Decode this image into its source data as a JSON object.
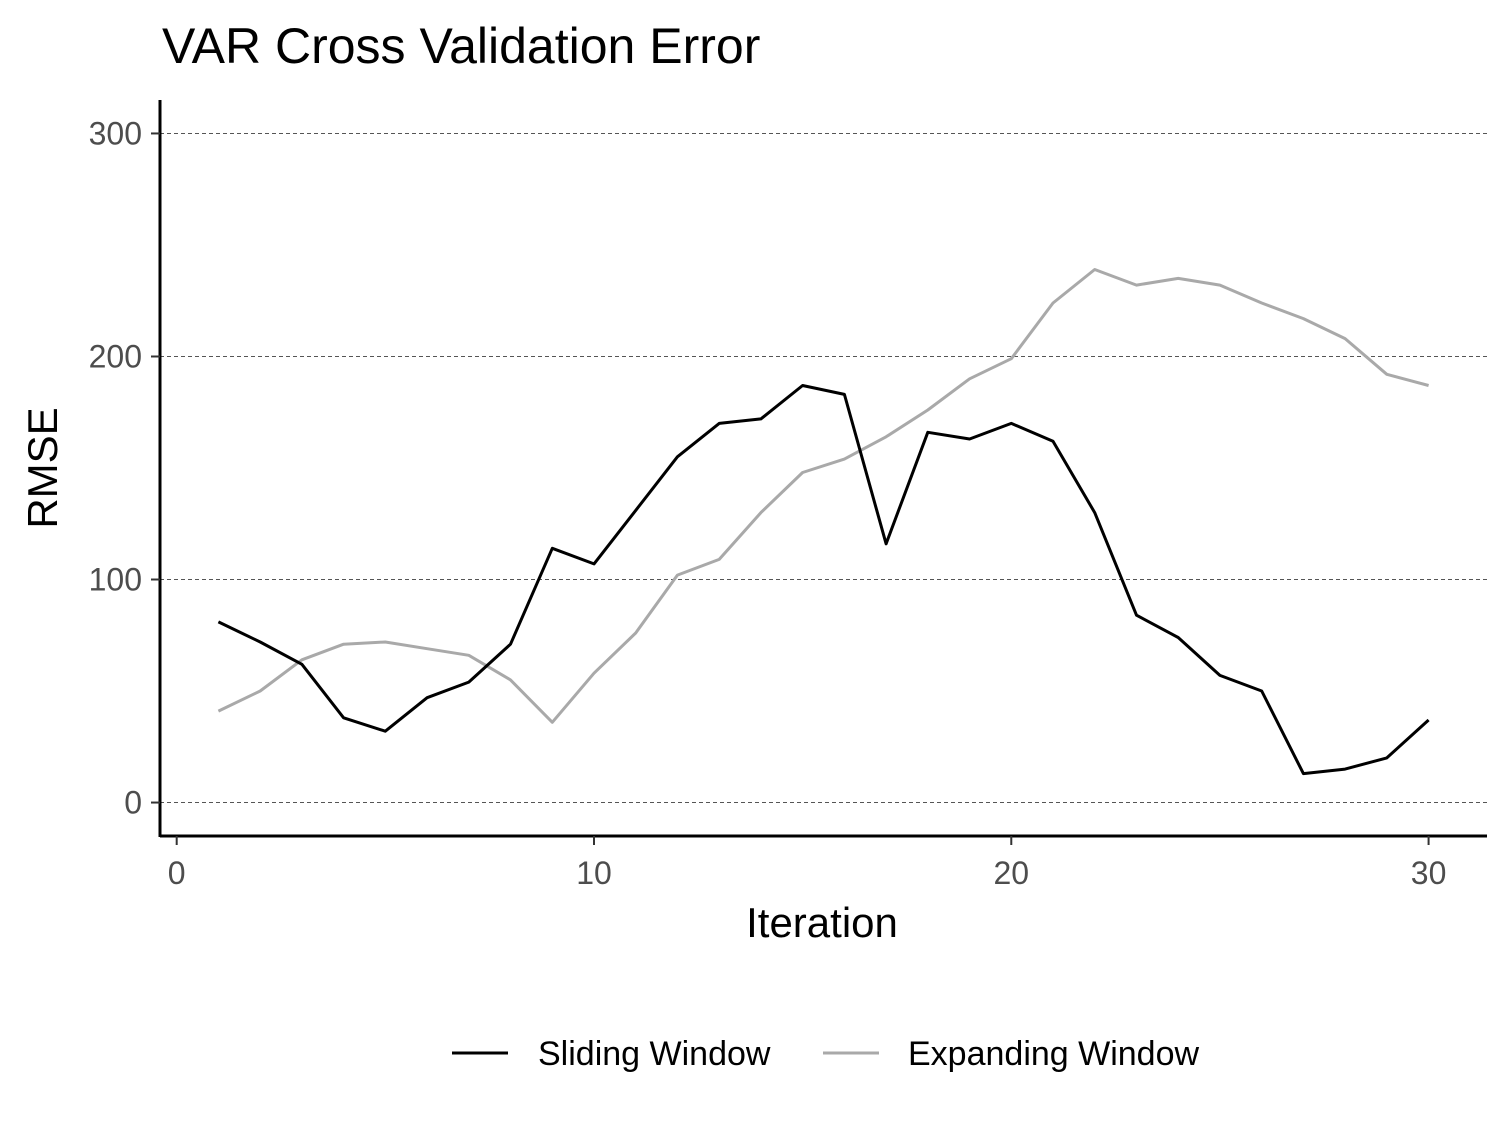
{
  "chart_data": {
    "type": "line",
    "title": "VAR Cross Validation Error",
    "xlabel": "Iteration",
    "ylabel": "RMSE",
    "xlim": [
      -0.4,
      31.4
    ],
    "ylim": [
      -15,
      315
    ],
    "x_ticks": [
      0,
      10,
      20,
      30
    ],
    "y_ticks": [
      0,
      100,
      200,
      300
    ],
    "grid": {
      "horizontal_major": true,
      "vertical": false,
      "style": "dashed"
    },
    "legend_position": "bottom",
    "x": [
      1,
      2,
      3,
      4,
      5,
      6,
      7,
      8,
      9,
      10,
      11,
      12,
      13,
      14,
      15,
      16,
      17,
      18,
      19,
      20,
      21,
      22,
      23,
      24,
      25,
      26,
      27,
      28,
      29,
      30
    ],
    "series": [
      {
        "name": "Sliding Window",
        "color": "#000000",
        "values": [
          81,
          72,
          62,
          38,
          32,
          47,
          54,
          71,
          114,
          107,
          131,
          155,
          170,
          172,
          187,
          183,
          116,
          166,
          163,
          170,
          162,
          130,
          84,
          74,
          57,
          50,
          13,
          15,
          20,
          37
        ]
      },
      {
        "name": "Expanding Window",
        "color": "#a9a9a9",
        "values": [
          41,
          50,
          64,
          71,
          72,
          69,
          66,
          55,
          36,
          58,
          76,
          102,
          109,
          130,
          148,
          154,
          164,
          176,
          190,
          199,
          224,
          239,
          232,
          235,
          232,
          224,
          217,
          208,
          192,
          187
        ]
      }
    ]
  }
}
